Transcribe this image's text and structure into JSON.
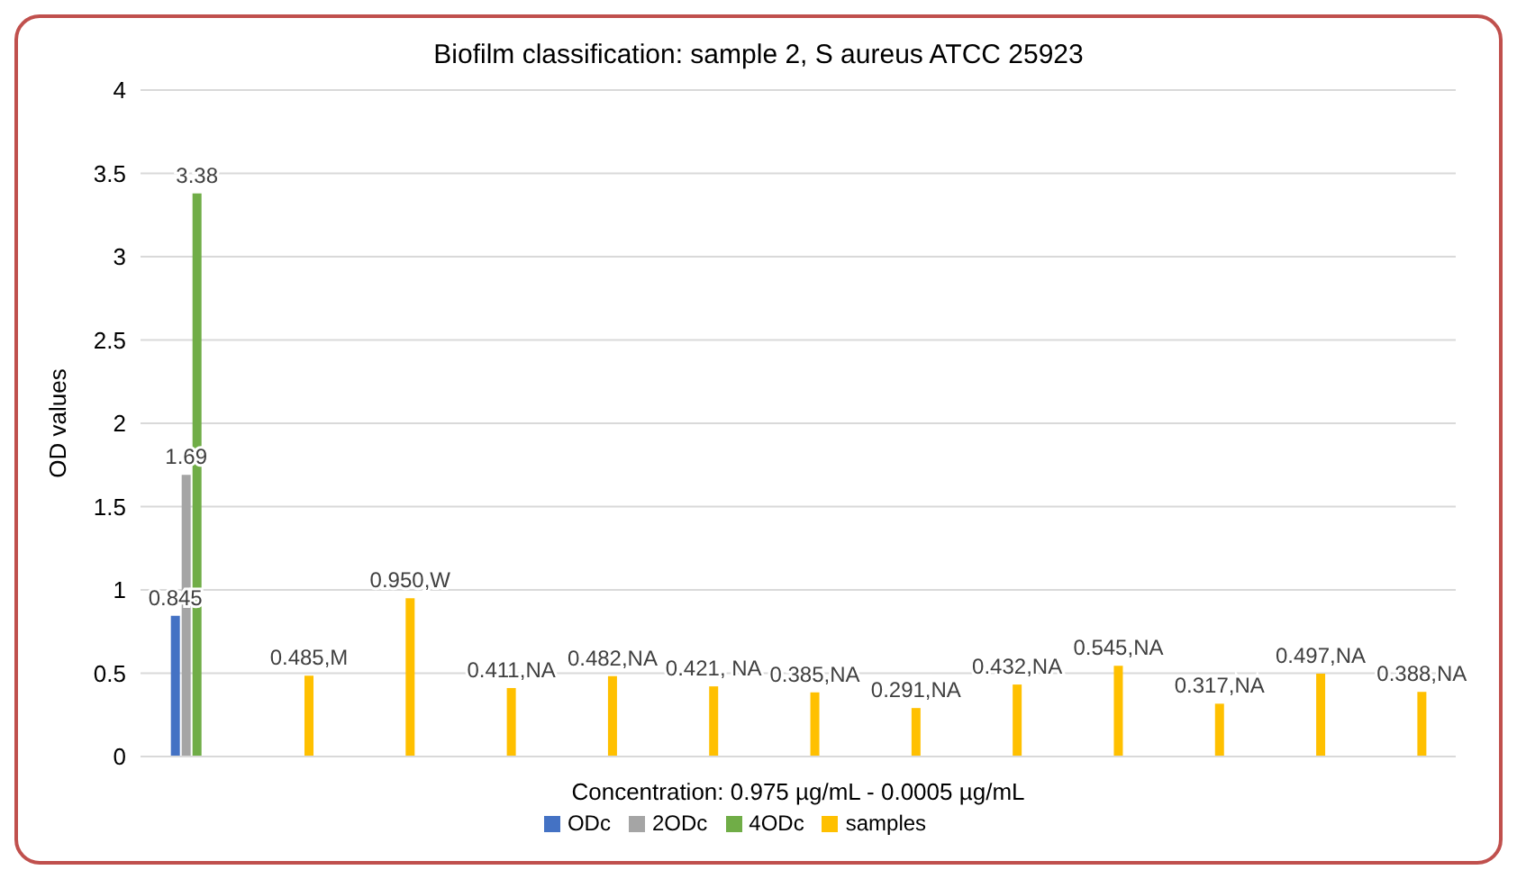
{
  "chart_data": {
    "type": "bar",
    "title": "Biofilm classification: sample 2, S aureus ATCC 25923",
    "xlabel": "Concentration: 0.975 µg/mL - 0.0005 µg/mL",
    "ylabel": "OD values",
    "categories": [
      null,
      null,
      null,
      null,
      null,
      null,
      null,
      null,
      null,
      null,
      null,
      null,
      null
    ],
    "series": [
      {
        "name": "ODc",
        "color": "#4472c4",
        "values": [
          0.845,
          null,
          null,
          null,
          null,
          null,
          null,
          null,
          null,
          null,
          null,
          null,
          null
        ],
        "value_labels": [
          "0.845",
          null,
          null,
          null,
          null,
          null,
          null,
          null,
          null,
          null,
          null,
          null,
          null
        ]
      },
      {
        "name": "2ODc",
        "color": "#a5a5a5",
        "values": [
          1.69,
          null,
          null,
          null,
          null,
          null,
          null,
          null,
          null,
          null,
          null,
          null,
          null
        ],
        "value_labels": [
          "1.69",
          null,
          null,
          null,
          null,
          null,
          null,
          null,
          null,
          null,
          null,
          null,
          null
        ]
      },
      {
        "name": "4ODc",
        "color": "#70ad47",
        "values": [
          3.38,
          null,
          null,
          null,
          null,
          null,
          null,
          null,
          null,
          null,
          null,
          null,
          null
        ],
        "value_labels": [
          "3.38",
          null,
          null,
          null,
          null,
          null,
          null,
          null,
          null,
          null,
          null,
          null,
          null
        ]
      },
      {
        "name": "samples",
        "color": "#ffc000",
        "values": [
          null,
          0.485,
          0.95,
          0.411,
          0.482,
          0.421,
          0.385,
          0.291,
          0.432,
          0.545,
          0.317,
          0.497,
          0.388
        ],
        "value_labels": [
          null,
          "0.485,M",
          "0.950,W",
          "0.411,NA",
          "0.482,NA",
          "0.421, NA",
          "0.385,NA",
          "0.291,NA",
          "0.432,NA",
          "0.545,NA",
          "0.317,NA",
          "0.497,NA",
          "0.388,NA"
        ]
      }
    ],
    "ylim": [
      0,
      4
    ],
    "yticks": [
      0,
      0.5,
      1,
      1.5,
      2,
      2.5,
      3,
      3.5,
      4
    ],
    "grid": "y",
    "legend": "bottom"
  }
}
